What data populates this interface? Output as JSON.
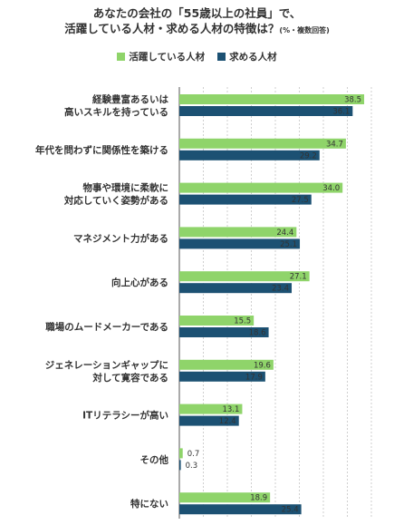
{
  "title": {
    "line1": "あなたの会社の「55歳以上の社員」で、",
    "line2": "活躍している人材・求める人材の特徴は？",
    "note": "(%・複数回答)"
  },
  "colors": {
    "active": "#8fd46a",
    "sought": "#1c5173",
    "grid": "#cfcfcf"
  },
  "chart_data": {
    "type": "bar",
    "orientation": "horizontal",
    "categories": [
      [
        "経験豊富あるいは",
        "高いスキルを持っている"
      ],
      [
        "年代を問わずに関係性を築ける"
      ],
      [
        "物事や環境に柔軟に",
        "対応していく姿勢がある"
      ],
      [
        "マネジメント力がある"
      ],
      [
        "向上心がある"
      ],
      [
        "職場のムードメーカーである"
      ],
      [
        "ジェネレーションギャップに",
        "対して寛容である"
      ],
      [
        "ITリテラシーが高い"
      ],
      [
        "その他"
      ],
      [
        "特にない"
      ]
    ],
    "series": [
      {
        "name": "活躍している人材",
        "color": "#8fd46a",
        "values": [
          38.5,
          34.7,
          34.0,
          24.4,
          27.1,
          15.5,
          19.6,
          13.1,
          0.7,
          18.9
        ]
      },
      {
        "name": "求める人材",
        "color": "#1c5173",
        "values": [
          36.1,
          29.2,
          27.5,
          25.1,
          23.4,
          18.6,
          17.9,
          12.4,
          0.3,
          25.4
        ]
      }
    ],
    "xlim": [
      0,
      40
    ],
    "legend": "top-center",
    "grid": true
  }
}
